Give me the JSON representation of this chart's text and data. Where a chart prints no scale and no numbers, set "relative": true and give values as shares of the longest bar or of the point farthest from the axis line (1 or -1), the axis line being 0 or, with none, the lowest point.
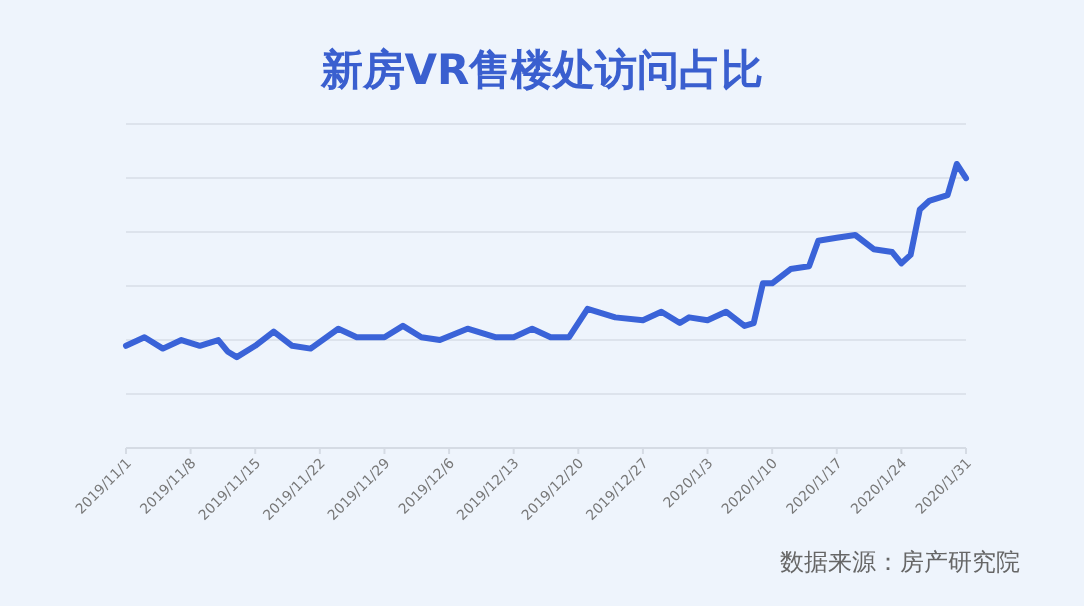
{
  "chart_data": {
    "type": "line",
    "title": "新房VR售楼处访问占比",
    "relative": true,
    "grid": "y",
    "marker": "none",
    "line_style": "solid",
    "annotations": [
      "数据来源：房产研究院"
    ],
    "xlim": [
      "2019-11-01",
      "2020-01-31"
    ],
    "xticks": [
      {
        "value": "2019-11-01",
        "label": "2019/11/1"
      },
      {
        "value": "2019-11-08",
        "label": "2019/11/8"
      },
      {
        "value": "2019-11-15",
        "label": "2019/11/15"
      },
      {
        "value": "2019-11-22",
        "label": "2019/11/22"
      },
      {
        "value": "2019-11-29",
        "label": "2019/11/29"
      },
      {
        "value": "2019-12-06",
        "label": "2019/12/6"
      },
      {
        "value": "2019-12-13",
        "label": "2019/12/13"
      },
      {
        "value": "2019-12-20",
        "label": "2019/12/20"
      },
      {
        "value": "2019-12-27",
        "label": "2019/12/27"
      },
      {
        "value": "2020-01-03",
        "label": "2020/1/3"
      },
      {
        "value": "2020-01-10",
        "label": "2020/1/10"
      },
      {
        "value": "2020-01-17",
        "label": "2020/1/17"
      },
      {
        "value": "2020-01-24",
        "label": "2020/1/24"
      },
      {
        "value": "2020-01-31",
        "label": "2020/1/31"
      }
    ],
    "x": [
      "2019-11-01",
      "2019-11-03",
      "2019-11-05",
      "2019-11-07",
      "2019-11-09",
      "2019-11-11",
      "2019-11-12",
      "2019-11-13",
      "2019-11-15",
      "2019-11-17",
      "2019-11-19",
      "2019-11-21",
      "2019-11-24",
      "2019-11-26",
      "2019-11-29",
      "2019-12-01",
      "2019-12-03",
      "2019-12-05",
      "2019-12-08",
      "2019-12-11",
      "2019-12-13",
      "2019-12-15",
      "2019-12-17",
      "2019-12-19",
      "2019-12-21",
      "2019-12-24",
      "2019-12-27",
      "2019-12-29",
      "2019-12-31",
      "2020-01-01",
      "2020-01-03",
      "2020-01-05",
      "2020-01-07",
      "2020-01-08",
      "2020-01-09",
      "2020-01-10",
      "2020-01-12",
      "2020-01-14",
      "2020-01-15",
      "2020-01-17",
      "2020-01-19",
      "2020-01-21",
      "2020-01-23",
      "2020-01-24",
      "2020-01-25",
      "2020-01-26",
      "2020-01-27",
      "2020-01-29",
      "2020-01-30",
      "2020-01-31"
    ],
    "series": [
      {
        "color": "#3a63d8",
        "values": [
          0.36,
          0.39,
          0.35,
          0.38,
          0.36,
          0.38,
          0.34,
          0.32,
          0.36,
          0.41,
          0.36,
          0.35,
          0.42,
          0.39,
          0.39,
          0.43,
          0.39,
          0.38,
          0.42,
          0.39,
          0.39,
          0.42,
          0.39,
          0.39,
          0.49,
          0.46,
          0.45,
          0.48,
          0.44,
          0.46,
          0.45,
          0.48,
          0.43,
          0.44,
          0.58,
          0.58,
          0.63,
          0.64,
          0.73,
          0.74,
          0.75,
          0.7,
          0.69,
          0.65,
          0.68,
          0.84,
          0.87,
          0.89,
          1.0,
          0.95
        ]
      }
    ]
  }
}
